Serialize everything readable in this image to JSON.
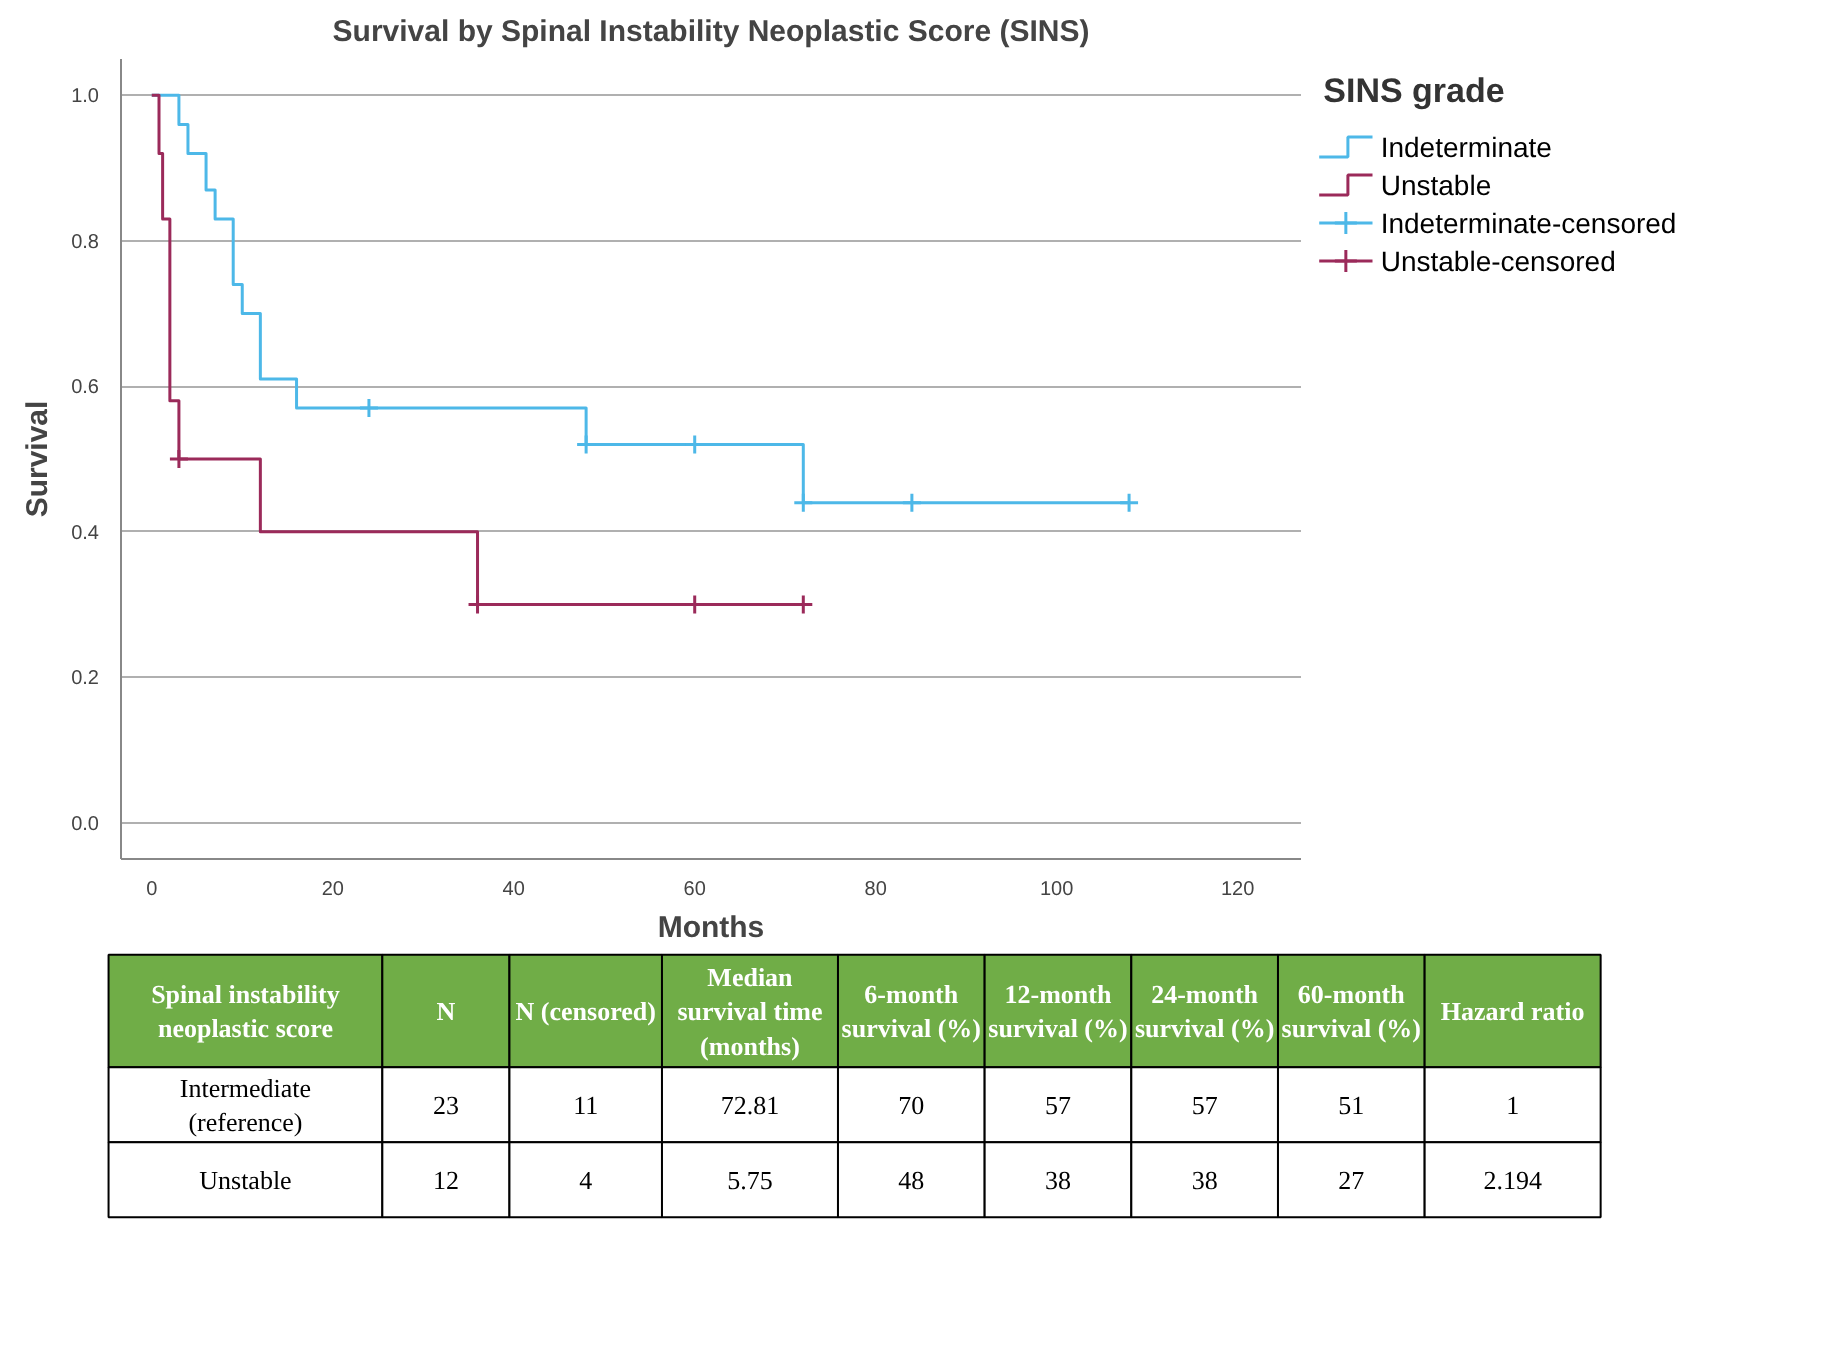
{
  "chart_data": {
    "type": "step",
    "title": "Survival by Spinal Instability Neoplastic Score (SINS)",
    "xlabel": "Months",
    "ylabel": "Survival",
    "legend_title": "SINS grade",
    "xlim": [
      -3.4,
      127
    ],
    "xticks": [
      0,
      20,
      40,
      60,
      80,
      100,
      120
    ],
    "ylim": [
      -0.05,
      1.05
    ],
    "yticks": [
      {
        "value": 0,
        "label": "0.0"
      },
      {
        "value": 0.2,
        "label": "0.2"
      },
      {
        "value": 0.4,
        "label": "0.4"
      },
      {
        "value": 0.6,
        "label": "0.6"
      },
      {
        "value": 0.8,
        "label": "0.8"
      },
      {
        "value": 1,
        "label": "1.0"
      }
    ],
    "grid": "y",
    "legend": "right",
    "series": [
      {
        "name": "Indeterminate",
        "color": "#4db8e8",
        "x": [
          0,
          3,
          4,
          6,
          7,
          9,
          10,
          12,
          16,
          48,
          72,
          108
        ],
        "values": [
          1,
          0.96,
          0.92,
          0.87,
          0.83,
          0.74,
          0.7,
          0.61,
          0.57,
          0.52,
          0.44,
          0.44
        ]
      },
      {
        "name": "Unstable",
        "color": "#9b2a5a",
        "x": [
          0,
          0.8,
          1.2,
          2,
          3,
          12,
          36,
          72
        ],
        "values": [
          1,
          0.92,
          0.83,
          0.58,
          0.5,
          0.4,
          0.3,
          0.3
        ]
      },
      {
        "name": "Indeterminate-censored",
        "color": "#4db8e8",
        "type": "scatter",
        "marker": "cross",
        "x": [
          24,
          48,
          60,
          72,
          84,
          108
        ],
        "values": [
          0.57,
          0.52,
          0.52,
          0.44,
          0.44,
          0.44
        ]
      },
      {
        "name": "Unstable-censored",
        "color": "#9b2a5a",
        "type": "scatter",
        "marker": "cross",
        "x": [
          3,
          36,
          60,
          72
        ],
        "values": [
          0.5,
          0.3,
          0.3,
          0.3
        ]
      }
    ],
    "annotations": [
      "Spinal instability neoplastic score",
      "N",
      "N (censored)",
      "Median survival time (months)",
      "6-month survival (%)",
      "12-month survival (%)",
      "24-month survival (%)",
      "60-month survival (%)",
      "Hazard ratio",
      "Intermediate (reference)",
      "23",
      "11",
      "72.81",
      "70",
      "57",
      "57",
      "51",
      "1",
      "Unstable",
      "12",
      "4",
      "5.75",
      "48",
      "38",
      "38",
      "27",
      "2.194"
    ]
  }
}
